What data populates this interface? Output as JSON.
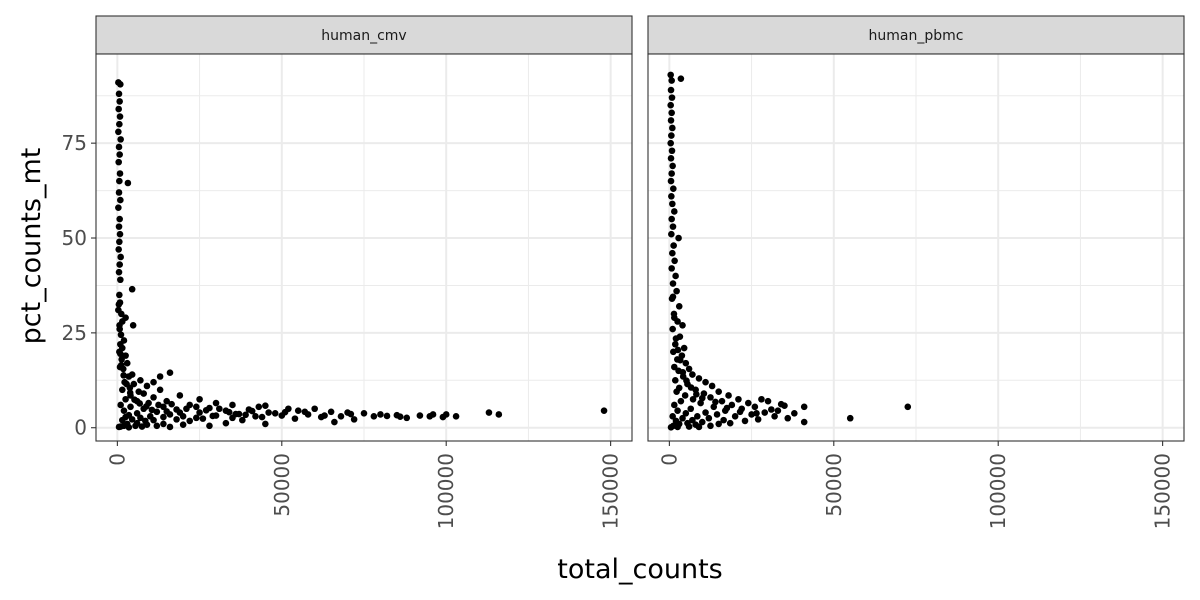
{
  "chart_data": {
    "type": "scatter",
    "xlabel": "total_counts",
    "ylabel": "pct_counts_mt",
    "xlim": [
      0,
      150000
    ],
    "ylim": [
      0,
      95
    ],
    "x_ticks": [
      0,
      50000,
      100000,
      150000
    ],
    "y_ticks": [
      0,
      25,
      50,
      75
    ],
    "x_tick_labels": [
      "0",
      "50000",
      "100000",
      "150000"
    ],
    "y_tick_labels": [
      "0",
      "25",
      "50",
      "75"
    ],
    "grid": true,
    "point_color": "#000000",
    "panels": [
      {
        "strip_label": "human_cmv",
        "points": [
          [
            300,
            91
          ],
          [
            900,
            90.5
          ],
          [
            500,
            88
          ],
          [
            700,
            86
          ],
          [
            400,
            84
          ],
          [
            800,
            82
          ],
          [
            600,
            80
          ],
          [
            300,
            78
          ],
          [
            1000,
            76
          ],
          [
            500,
            74
          ],
          [
            700,
            72
          ],
          [
            400,
            70
          ],
          [
            800,
            67
          ],
          [
            600,
            65
          ],
          [
            3200,
            64.5
          ],
          [
            500,
            62
          ],
          [
            900,
            60
          ],
          [
            300,
            58
          ],
          [
            700,
            55
          ],
          [
            500,
            53
          ],
          [
            800,
            51
          ],
          [
            600,
            49
          ],
          [
            400,
            47
          ],
          [
            1000,
            45
          ],
          [
            700,
            43
          ],
          [
            500,
            41
          ],
          [
            900,
            39
          ],
          [
            4500,
            36.5
          ],
          [
            600,
            35
          ],
          [
            800,
            33
          ],
          [
            300,
            31
          ],
          [
            1200,
            30
          ],
          [
            2500,
            29
          ],
          [
            1500,
            28
          ],
          [
            4800,
            27
          ],
          [
            700,
            26
          ],
          [
            1100,
            24.5
          ],
          [
            2000,
            23
          ],
          [
            900,
            22
          ],
          [
            1500,
            21
          ],
          [
            600,
            20
          ],
          [
            2500,
            19
          ],
          [
            1300,
            18
          ],
          [
            3000,
            17
          ],
          [
            800,
            16
          ],
          [
            1800,
            15.5
          ],
          [
            16000,
            14.5
          ],
          [
            4500,
            14
          ],
          [
            3500,
            13.5
          ],
          [
            13000,
            13.5
          ],
          [
            7000,
            12.5
          ],
          [
            2200,
            12
          ],
          [
            11000,
            12
          ],
          [
            5000,
            11.5
          ],
          [
            9000,
            11
          ],
          [
            3800,
            10.5
          ],
          [
            13000,
            10
          ],
          [
            1500,
            10
          ],
          [
            6500,
            9.5
          ],
          [
            8000,
            9
          ],
          [
            19000,
            8.5
          ],
          [
            4000,
            8.5
          ],
          [
            11000,
            8
          ],
          [
            25000,
            7.5
          ],
          [
            2500,
            7.5
          ],
          [
            15000,
            7
          ],
          [
            6000,
            7
          ],
          [
            30000,
            6.5
          ],
          [
            9500,
            6.5
          ],
          [
            35000,
            6
          ],
          [
            1000,
            6
          ],
          [
            22000,
            6
          ],
          [
            45000,
            5.8
          ],
          [
            14000,
            5.5
          ],
          [
            4000,
            5.5
          ],
          [
            28000,
            5.2
          ],
          [
            52000,
            5
          ],
          [
            60000,
            5
          ],
          [
            8000,
            5
          ],
          [
            40000,
            4.8
          ],
          [
            18000,
            4.8
          ],
          [
            55000,
            4.5
          ],
          [
            33000,
            4.5
          ],
          [
            2000,
            4.5
          ],
          [
            65000,
            4.2
          ],
          [
            12000,
            4.2
          ],
          [
            70000,
            4
          ],
          [
            46000,
            4
          ],
          [
            25000,
            4
          ],
          [
            75000,
            3.8
          ],
          [
            6000,
            3.8
          ],
          [
            37000,
            3.6
          ],
          [
            80000,
            3.5
          ],
          [
            58000,
            3.5
          ],
          [
            16000,
            3.5
          ],
          [
            85000,
            3.3
          ],
          [
            3500,
            3.3
          ],
          [
            30000,
            3.2
          ],
          [
            50000,
            3.2
          ],
          [
            92000,
            3.2
          ],
          [
            10000,
            3
          ],
          [
            68000,
            3
          ],
          [
            20000,
            3
          ],
          [
            96000,
            3.5
          ],
          [
            42000,
            3
          ],
          [
            78000,
            3
          ],
          [
            2500,
            2.8
          ],
          [
            100000,
            3.5
          ],
          [
            62000,
            2.8
          ],
          [
            14000,
            2.8
          ],
          [
            103000,
            3
          ],
          [
            35000,
            2.6
          ],
          [
            88000,
            2.6
          ],
          [
            7000,
            2.6
          ],
          [
            113000,
            4
          ],
          [
            116000,
            3.5
          ],
          [
            148000,
            4.5
          ],
          [
            26000,
            2.4
          ],
          [
            54000,
            2.4
          ],
          [
            18000,
            2.2
          ],
          [
            72000,
            2.2
          ],
          [
            4500,
            2.2
          ],
          [
            11000,
            2
          ],
          [
            38000,
            2
          ],
          [
            1500,
            2
          ],
          [
            22000,
            1.8
          ],
          [
            8500,
            1.8
          ],
          [
            66000,
            1.5
          ],
          [
            33000,
            1.2
          ],
          [
            6000,
            1.2
          ],
          [
            14000,
            1
          ],
          [
            3000,
            1
          ],
          [
            45000,
            1
          ],
          [
            9000,
            0.8
          ],
          [
            20000,
            0.8
          ],
          [
            2000,
            0.5
          ],
          [
            12000,
            0.5
          ],
          [
            5500,
            0.5
          ],
          [
            28000,
            0.5
          ],
          [
            1000,
            0.3
          ],
          [
            7500,
            0.3
          ],
          [
            16000,
            0.2
          ],
          [
            3500,
            0.1
          ],
          [
            500,
            0.2
          ],
          [
            24000,
            5.5
          ],
          [
            19000,
            4
          ],
          [
            31000,
            5
          ],
          [
            43000,
            5.5
          ],
          [
            57000,
            4.2
          ],
          [
            48000,
            3.8
          ],
          [
            63000,
            3.2
          ],
          [
            71000,
            3.6
          ],
          [
            82000,
            3.1
          ],
          [
            86000,
            2.9
          ],
          [
            95000,
            3
          ],
          [
            99000,
            2.8
          ],
          [
            12500,
            6
          ],
          [
            16500,
            6.2
          ],
          [
            21000,
            5
          ],
          [
            27000,
            4.6
          ],
          [
            34000,
            4.1
          ],
          [
            39000,
            3.4
          ],
          [
            41000,
            4.4
          ],
          [
            51000,
            4.1
          ],
          [
            44000,
            2.8
          ],
          [
            36000,
            3.6
          ],
          [
            29000,
            3.1
          ],
          [
            24000,
            2.6
          ],
          [
            15000,
            4.3
          ],
          [
            10500,
            4.7
          ],
          [
            8800,
            5.6
          ],
          [
            6800,
            6.4
          ],
          [
            5200,
            7.4
          ],
          [
            3900,
            9.2
          ],
          [
            2800,
            11.5
          ],
          [
            1900,
            13.8
          ],
          [
            1200,
            16.5
          ],
          [
            900,
            19.5
          ],
          [
            650,
            27
          ],
          [
            450,
            32.5
          ]
        ]
      },
      {
        "strip_label": "human_pbmc",
        "points": [
          [
            400,
            93
          ],
          [
            700,
            91.5
          ],
          [
            3500,
            92
          ],
          [
            500,
            89
          ],
          [
            800,
            87
          ],
          [
            400,
            85
          ],
          [
            700,
            83
          ],
          [
            500,
            81
          ],
          [
            900,
            79
          ],
          [
            600,
            77
          ],
          [
            400,
            75
          ],
          [
            800,
            73
          ],
          [
            500,
            71
          ],
          [
            1000,
            69
          ],
          [
            700,
            67
          ],
          [
            500,
            65
          ],
          [
            1200,
            63
          ],
          [
            600,
            61
          ],
          [
            900,
            59
          ],
          [
            1500,
            57
          ],
          [
            700,
            55
          ],
          [
            1100,
            53
          ],
          [
            2800,
            50
          ],
          [
            600,
            51
          ],
          [
            1300,
            48
          ],
          [
            900,
            46
          ],
          [
            1600,
            44
          ],
          [
            700,
            42
          ],
          [
            1900,
            40
          ],
          [
            1100,
            38
          ],
          [
            2200,
            36
          ],
          [
            800,
            34
          ],
          [
            3000,
            32
          ],
          [
            1400,
            30
          ],
          [
            2500,
            28
          ],
          [
            4000,
            27
          ],
          [
            1000,
            26
          ],
          [
            3200,
            24
          ],
          [
            1800,
            22
          ],
          [
            4500,
            21
          ],
          [
            1200,
            20
          ],
          [
            3800,
            19
          ],
          [
            2400,
            18
          ],
          [
            5000,
            17
          ],
          [
            1500,
            16
          ],
          [
            6000,
            15.5
          ],
          [
            2800,
            15
          ],
          [
            7000,
            14
          ],
          [
            4200,
            13.5
          ],
          [
            9000,
            13
          ],
          [
            1800,
            12.5
          ],
          [
            11000,
            12
          ],
          [
            5500,
            11.5
          ],
          [
            13000,
            11
          ],
          [
            3000,
            10.5
          ],
          [
            8000,
            10
          ],
          [
            15000,
            9.5
          ],
          [
            2200,
            9.5
          ],
          [
            10500,
            9
          ],
          [
            18000,
            8.5
          ],
          [
            4800,
            8.5
          ],
          [
            12500,
            8
          ],
          [
            21000,
            7.5
          ],
          [
            7200,
            7.5
          ],
          [
            16000,
            7
          ],
          [
            28000,
            7.5
          ],
          [
            3500,
            7
          ],
          [
            24000,
            6.5
          ],
          [
            9500,
            6.5
          ],
          [
            30000,
            7
          ],
          [
            19000,
            6
          ],
          [
            1500,
            6
          ],
          [
            26000,
            5.5
          ],
          [
            13500,
            5.5
          ],
          [
            35000,
            5.8
          ],
          [
            41000,
            5.5
          ],
          [
            6500,
            5
          ],
          [
            22000,
            5
          ],
          [
            33000,
            4.5
          ],
          [
            17000,
            4.5
          ],
          [
            2500,
            4.5
          ],
          [
            29000,
            4
          ],
          [
            11000,
            4
          ],
          [
            38000,
            3.8
          ],
          [
            5000,
            3.8
          ],
          [
            25000,
            3.5
          ],
          [
            14500,
            3.5
          ],
          [
            32000,
            3
          ],
          [
            8500,
            3
          ],
          [
            20000,
            3
          ],
          [
            1000,
            3
          ],
          [
            36000,
            2.5
          ],
          [
            12000,
            2.5
          ],
          [
            4000,
            2.5
          ],
          [
            27000,
            2.2
          ],
          [
            16500,
            2
          ],
          [
            7000,
            2
          ],
          [
            23000,
            1.8
          ],
          [
            2000,
            1.8
          ],
          [
            41000,
            1.5
          ],
          [
            10000,
            1.5
          ],
          [
            18500,
            1.2
          ],
          [
            5500,
            1.2
          ],
          [
            15000,
            1
          ],
          [
            3000,
            1
          ],
          [
            8000,
            0.8
          ],
          [
            1200,
            0.5
          ],
          [
            12500,
            0.5
          ],
          [
            6000,
            0.3
          ],
          [
            9000,
            0.2
          ],
          [
            2500,
            0.2
          ],
          [
            500,
            0.1
          ],
          [
            55000,
            2.5
          ],
          [
            72500,
            5.5
          ],
          [
            34000,
            6.2
          ],
          [
            31000,
            4.8
          ],
          [
            26500,
            3.8
          ],
          [
            21500,
            4.2
          ],
          [
            17500,
            5.2
          ],
          [
            14000,
            6.8
          ],
          [
            10000,
            7.8
          ],
          [
            8200,
            8.8
          ],
          [
            6600,
            10.6
          ],
          [
            5200,
            12.4
          ],
          [
            4100,
            14.6
          ],
          [
            3300,
            17.8
          ],
          [
            2600,
            20.5
          ],
          [
            2000,
            23.5
          ],
          [
            1500,
            29
          ],
          [
            1100,
            34.5
          ]
        ]
      }
    ]
  }
}
